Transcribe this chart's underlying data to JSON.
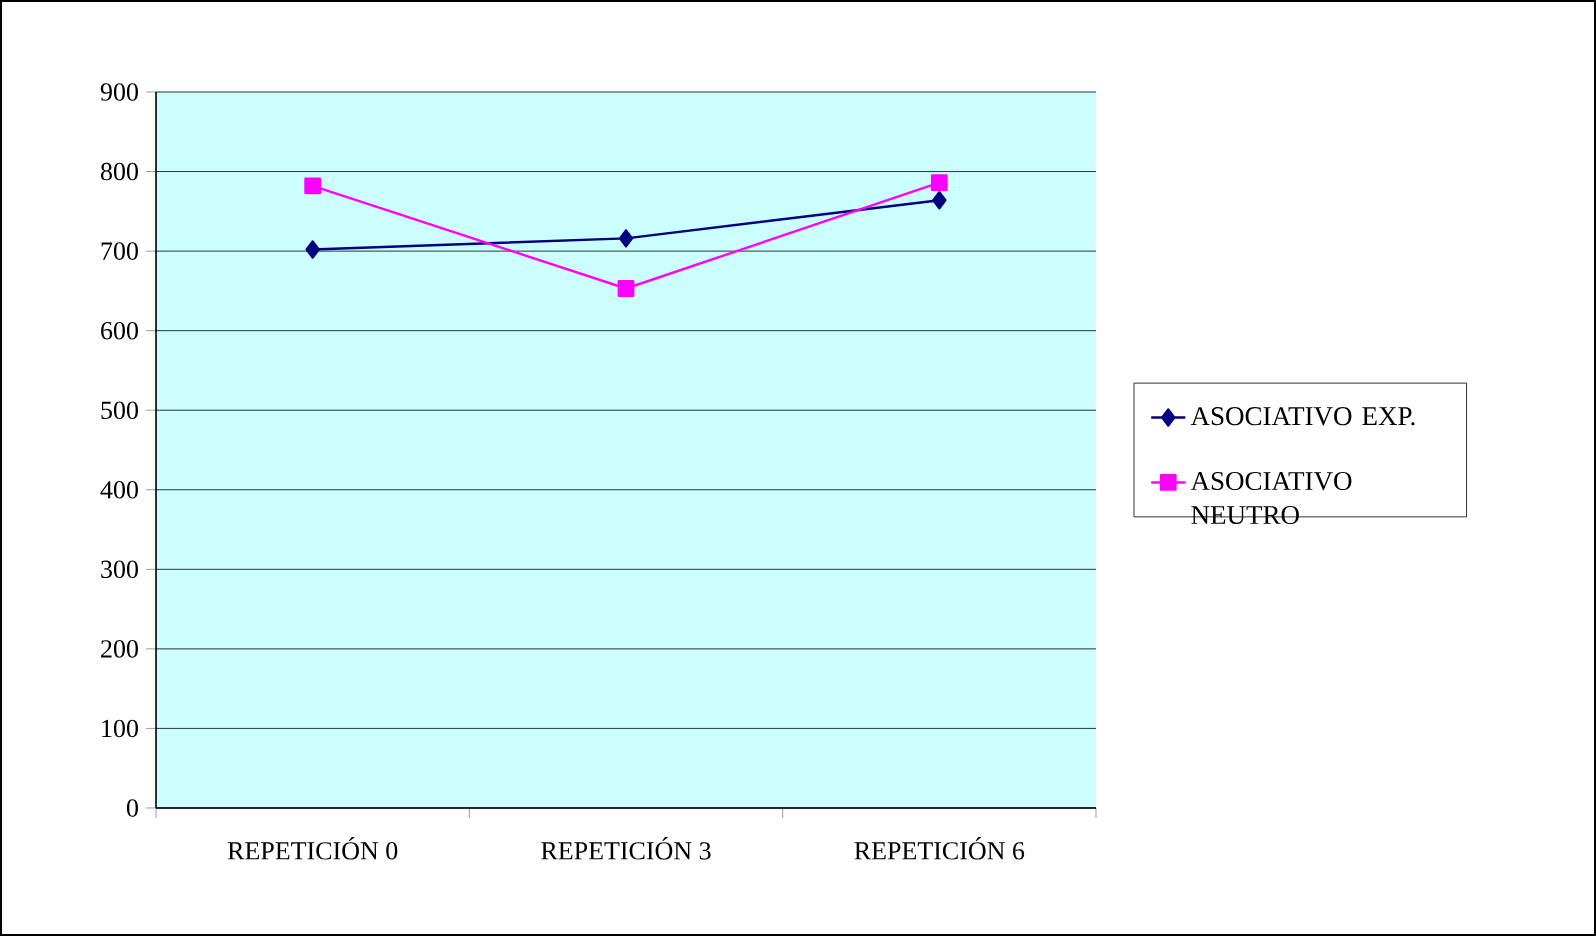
{
  "chart_data": {
    "type": "line",
    "categories": [
      "REPETICIÓN 0",
      "REPETICIÓN 3",
      "REPETICIÓN 6"
    ],
    "series": [
      {
        "name": "ASOCIATIVO EXP.",
        "color": "#000080",
        "marker": "diamond",
        "values": [
          702,
          716,
          764
        ]
      },
      {
        "name": "ASOCIATIVO NEUTRO",
        "color": "#ff00ff",
        "marker": "square",
        "values": [
          782,
          653,
          786
        ]
      }
    ],
    "ylim": [
      0,
      900
    ],
    "yticks": [
      0,
      100,
      200,
      300,
      400,
      500,
      600,
      700,
      800,
      900
    ],
    "grid": "y",
    "legend": "right",
    "line_style": "solid"
  }
}
